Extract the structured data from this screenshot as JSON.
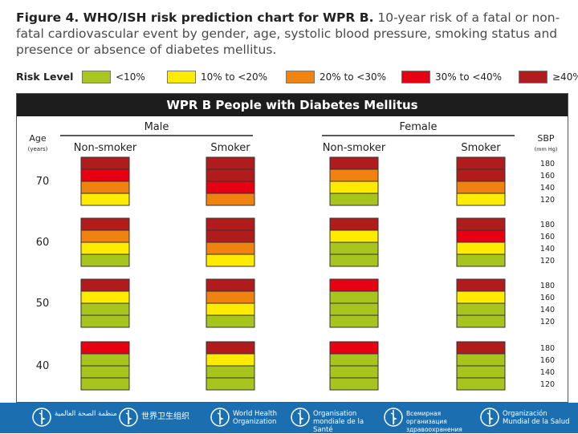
{
  "caption": {
    "figure": "Figure 4. WHO/ISH risk prediction chart for WPR B.",
    "text": "10-year risk of a fatal or non-fatal cardiovascular event by gender, age, systolic blood pressure, smoking status and presence or absence of diabetes mellitus."
  },
  "legend": {
    "title": "Risk Level",
    "items": [
      {
        "label": "<10%",
        "color": "#a8c41f"
      },
      {
        "label": "10% to <20%",
        "color": "#ffeb00"
      },
      {
        "label": "20% to <30%",
        "color": "#f0820f"
      },
      {
        "label": "30% to <40%",
        "color": "#e60012"
      },
      {
        "label": "≥40%",
        "color": "#b01c1c"
      }
    ]
  },
  "chart_data": {
    "type": "heatmap",
    "title": "WPR B People with Diabetes Mellitus",
    "genders": [
      "Male",
      "Female"
    ],
    "smoking": [
      "Non-smoker",
      "Smoker"
    ],
    "age_label": "Age",
    "age_unit": "(years)",
    "sbp_label": "SBP",
    "sbp_unit": "(mm Hg)",
    "ages": [
      "70",
      "60",
      "50",
      "40"
    ],
    "sbp": [
      "180",
      "160",
      "140",
      "120"
    ],
    "levels": [
      "<10%",
      "10% to <20%",
      "20% to <30%",
      "30% to <40%",
      "≥40%"
    ],
    "colors": [
      "#a8c41f",
      "#ffeb00",
      "#f0820f",
      "#e60012",
      "#b01c1c"
    ],
    "columns": [
      "Male Non-smoker",
      "Male Smoker",
      "Female Non-smoker",
      "Female Smoker"
    ],
    "risk_levels": {
      "70": [
        [
          4,
          3,
          2,
          1
        ],
        [
          4,
          4,
          3,
          2
        ],
        [
          4,
          2,
          1,
          0
        ],
        [
          4,
          4,
          2,
          1
        ]
      ],
      "60": [
        [
          4,
          2,
          1,
          0
        ],
        [
          4,
          4,
          2,
          1
        ],
        [
          4,
          1,
          0,
          0
        ],
        [
          4,
          3,
          1,
          0
        ]
      ],
      "50": [
        [
          4,
          1,
          0,
          0
        ],
        [
          4,
          2,
          1,
          0
        ],
        [
          3,
          0,
          0,
          0
        ],
        [
          4,
          1,
          0,
          0
        ]
      ],
      "40": [
        [
          3,
          0,
          0,
          0
        ],
        [
          4,
          1,
          0,
          0
        ],
        [
          3,
          0,
          0,
          0
        ],
        [
          4,
          0,
          0,
          0
        ]
      ]
    }
  },
  "footer": {
    "orgs": [
      "منظمة الصحة العالمية",
      "世界卫生组织",
      "World Health Organization",
      "Organisation mondiale de la Santé",
      "Всемирная организация здравоохранения",
      "Organización Mundial de la Salud"
    ]
  }
}
